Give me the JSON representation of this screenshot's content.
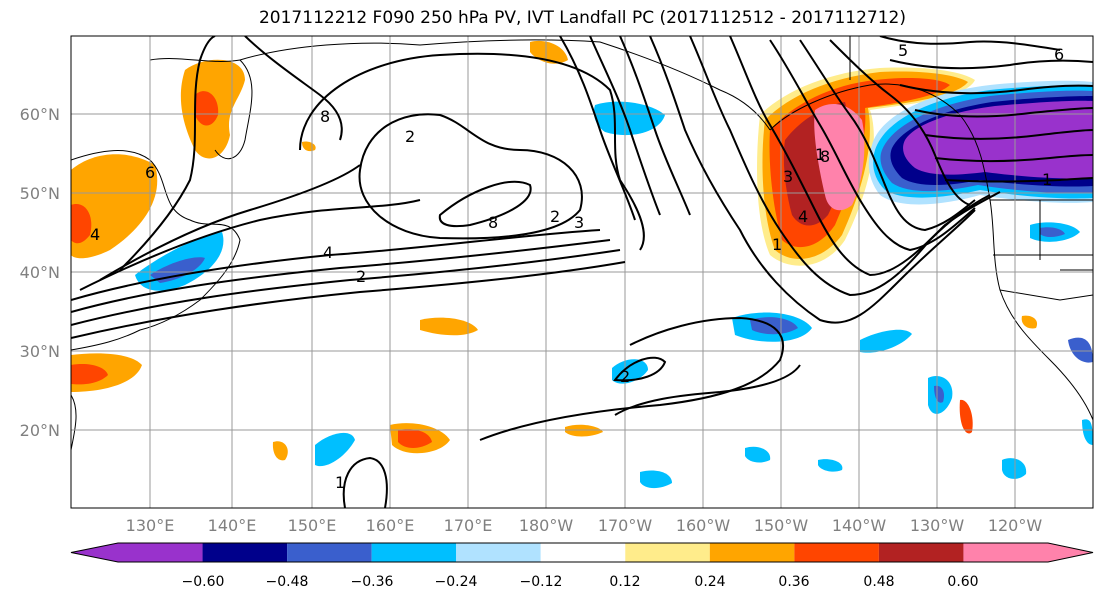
{
  "title": "2017112212 F090 250 hPa PV, IVT Landfall PC (2017112512 - 2017112712)",
  "map": {
    "lon_labels": [
      "130°E",
      "140°E",
      "150°E",
      "160°E",
      "170°E",
      "180°W",
      "170°W",
      "160°W",
      "150°W",
      "140°W",
      "130°W",
      "120°W"
    ],
    "lat_labels": [
      "60°N",
      "50°N",
      "40°N",
      "30°N",
      "20°N"
    ],
    "grid": true,
    "contour_labels": [
      "6",
      "4",
      "2",
      "4",
      "8",
      "2",
      "3",
      "8",
      "2",
      "1",
      "1",
      "1",
      "3",
      "4",
      "8",
      "5",
      "6",
      "2",
      "1"
    ]
  },
  "colorbar": {
    "ticks": [
      "−0.60",
      "−0.48",
      "−0.36",
      "−0.24",
      "−0.12",
      "0.12",
      "0.24",
      "0.36",
      "0.48",
      "0.60"
    ],
    "colors": [
      "#9932CC",
      "#00008B",
      "#3A5FCD",
      "#00BFFF",
      "#B0E2FF",
      "#FFFFFF",
      "#FFEC8B",
      "#FFA500",
      "#FF4500",
      "#B22222",
      "#FF82AB"
    ],
    "extend": "both"
  },
  "icons": {
    "map": "north-pacific-map",
    "colorbar": "colorbar-scale"
  }
}
